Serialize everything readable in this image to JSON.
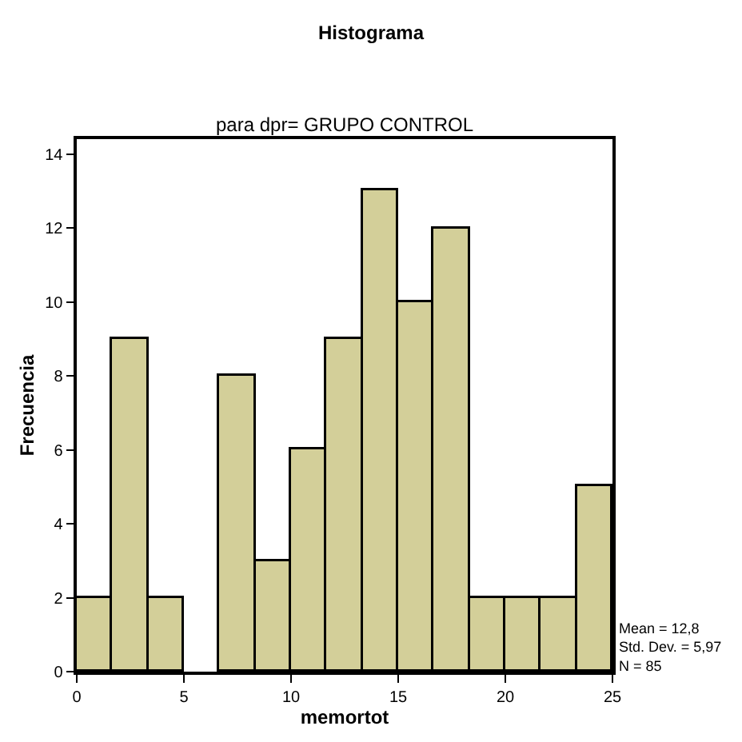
{
  "chart_data": {
    "type": "histogram",
    "title": "Histograma",
    "subtitle": "para dpr= GRUPO CONTROL",
    "xlabel": "memortot",
    "ylabel": "Frecuencia",
    "bins": [
      0,
      1.67,
      3.33,
      5,
      6.67,
      8.33,
      10,
      11.67,
      13.33,
      15,
      16.67,
      18.33,
      20,
      21.67,
      23.33,
      25
    ],
    "values": [
      2,
      9,
      2,
      0,
      8,
      3,
      6,
      9,
      13,
      10,
      12,
      2,
      2,
      2,
      5
    ],
    "color": "#d3cf99",
    "xlim": [
      0,
      25
    ],
    "xticks": [
      0,
      5,
      10,
      15,
      20,
      25
    ],
    "ylim": [
      0,
      14.4
    ],
    "yticks": [
      0,
      2,
      4,
      6,
      8,
      10,
      12,
      14
    ],
    "legend": false,
    "annotations": [
      "Mean = 12,8\nStd. Dev. = 5,97\nN = 85"
    ]
  }
}
